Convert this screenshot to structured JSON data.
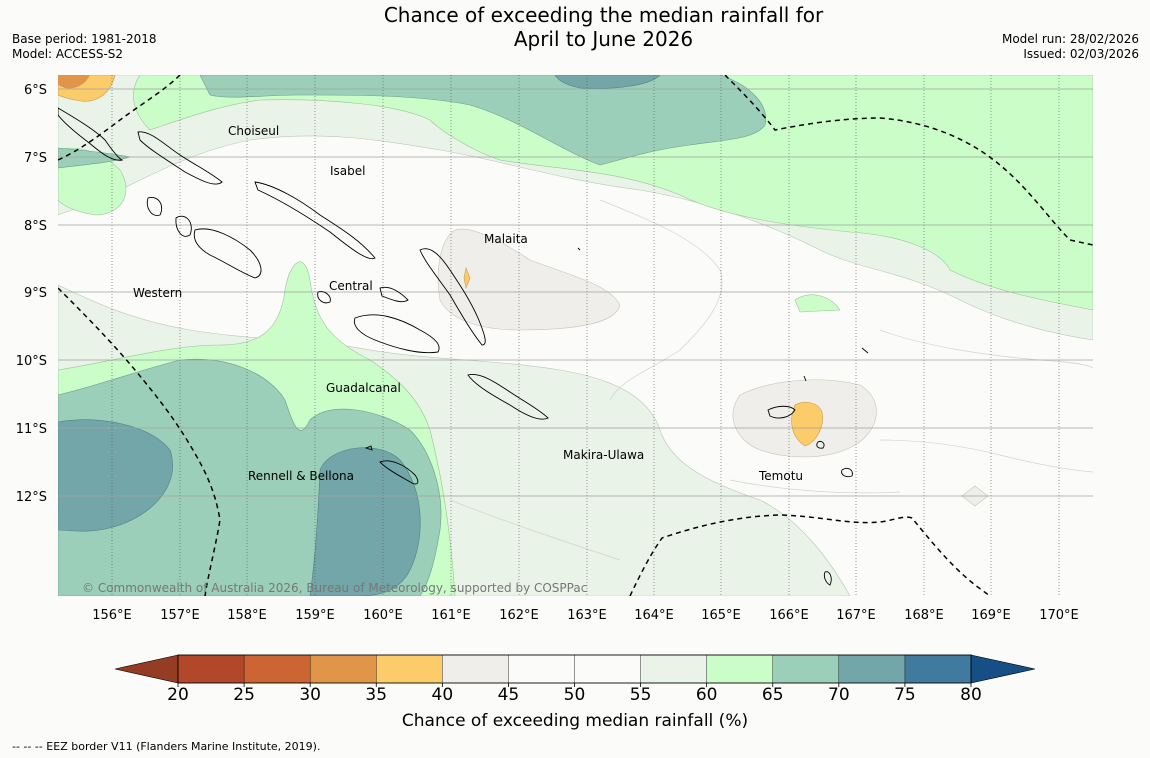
{
  "header": {
    "title_line1": "Chance of exceeding the median rainfall for",
    "title_line2": "April to June 2026",
    "base_period": "Base period: 1981-2018",
    "model": "Model: ACCESS-S2",
    "model_run": "Model run: 28/02/2026",
    "issued": "Issued: 02/03/2026"
  },
  "map": {
    "lat_labels": [
      "6°S",
      "7°S",
      "8°S",
      "9°S",
      "10°S",
      "11°S",
      "12°S"
    ],
    "lon_labels": [
      "156°E",
      "157°E",
      "158°E",
      "159°E",
      "160°E",
      "161°E",
      "162°E",
      "163°E",
      "164°E",
      "165°E",
      "166°E",
      "167°E",
      "168°E",
      "169°E",
      "170°E"
    ],
    "regions": [
      "Choiseul",
      "Isabel",
      "Malaita",
      "Western",
      "Central",
      "Guadalcanal",
      "Rennell & Bellona",
      "Makira-Ulawa",
      "Temotu"
    ],
    "copyright": "© Commonwealth of Australia 2026, Bureau of Meteorology, supported by COSPPac"
  },
  "colorbar": {
    "ticks": [
      "20",
      "25",
      "30",
      "35",
      "40",
      "45",
      "50",
      "55",
      "60",
      "65",
      "70",
      "75",
      "80"
    ],
    "colors": [
      "#b3472a",
      "#cc6433",
      "#e09549",
      "#fdcc6a",
      "#f0eeea",
      "#fbfcfa",
      "#fbfcfa",
      "#eaf3e8",
      "#cbfdc9",
      "#9ccfba",
      "#73a6a8",
      "#417a9f"
    ],
    "under_color": "#953c25",
    "over_color": "#154f86",
    "label": "Chance of exceeding median rainfall (%)"
  },
  "footnote": "--  --  -- EEZ border V11 (Flanders Marine Institute, 2019)."
}
